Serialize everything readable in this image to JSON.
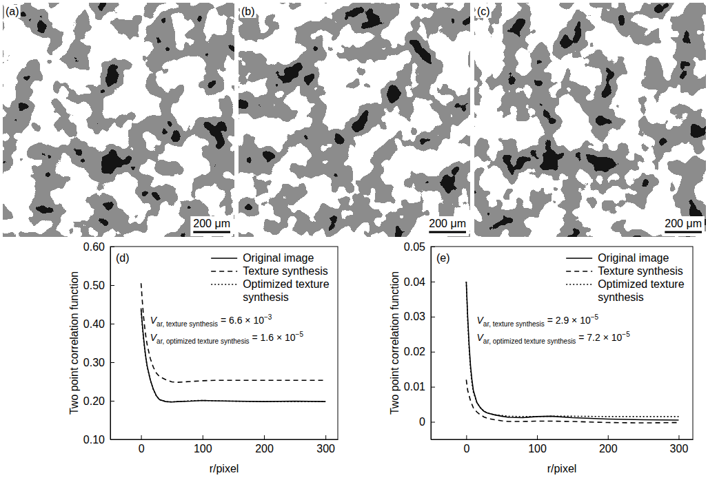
{
  "images": [
    {
      "label": "(a)",
      "scale_bar": "200 μm"
    },
    {
      "label": "(b)",
      "scale_bar": "200 μm"
    },
    {
      "label": "(c)",
      "scale_bar": "200 μm"
    }
  ],
  "chart_data": [
    {
      "type": "line",
      "title": "(d)",
      "x_label": "r/pixel",
      "y_label": "Two point correlation function",
      "xlim": [
        -50,
        320
      ],
      "xticks": [
        0,
        100,
        200,
        300
      ],
      "ylim": [
        0.1,
        0.6
      ],
      "yticks": [
        {
          "value": 0.1,
          "label": "0.10"
        },
        {
          "value": 0.2,
          "label": "0.20"
        },
        {
          "value": 0.3,
          "label": "0.30"
        },
        {
          "value": 0.4,
          "label": "0.40"
        },
        {
          "value": 0.5,
          "label": "0.50"
        },
        {
          "value": 0.6,
          "label": "0.60"
        }
      ],
      "grid": false,
      "legend": "upper right",
      "x": [
        0,
        2,
        4,
        6,
        8,
        10,
        15,
        20,
        25,
        30,
        40,
        50,
        60,
        80,
        100,
        120,
        150,
        200,
        250,
        300
      ],
      "series": [
        {
          "name": "Original image",
          "color": "#000000",
          "line_style": "solid",
          "values": [
            0.44,
            0.4,
            0.365,
            0.335,
            0.31,
            0.29,
            0.255,
            0.23,
            0.213,
            0.203,
            0.198,
            0.197,
            0.198,
            0.199,
            0.201,
            0.2,
            0.199,
            0.198,
            0.199,
            0.198
          ]
        },
        {
          "name": "Texture synthesis",
          "color": "#000000",
          "line_style": "dashed",
          "values": [
            0.505,
            0.46,
            0.42,
            0.39,
            0.365,
            0.345,
            0.31,
            0.287,
            0.272,
            0.263,
            0.255,
            0.249,
            0.248,
            0.25,
            0.252,
            0.253,
            0.253,
            0.253,
            0.253,
            0.253
          ]
        },
        {
          "name": "Optimized texture synthesis",
          "color": "#000000",
          "line_style": "dotted",
          "values": [
            0.435,
            0.395,
            0.36,
            0.332,
            0.308,
            0.288,
            0.254,
            0.229,
            0.212,
            0.203,
            0.198,
            0.197,
            0.198,
            0.2,
            0.201,
            0.2,
            0.199,
            0.198,
            0.198,
            0.198
          ]
        }
      ],
      "annotations": [
        {
          "symbol": "V",
          "subscript": "ar, texture synthesis",
          "text": " = 6.6 × 10",
          "superscript": "−3"
        },
        {
          "symbol": "V",
          "subscript": "ar, optimized texture synthesis",
          "text": " = 1.6 × 10",
          "superscript": "−5"
        }
      ]
    },
    {
      "type": "line",
      "title": "(e)",
      "x_label": "r/pixel",
      "y_label": "Two point correlation function",
      "xlim": [
        -50,
        320
      ],
      "xticks": [
        0,
        100,
        200,
        300
      ],
      "ylim": [
        -0.005,
        0.05
      ],
      "yticks": [
        0,
        0.01,
        0.02,
        0.03,
        0.04,
        0.05
      ],
      "grid": false,
      "legend": "upper right",
      "x": [
        0,
        2,
        4,
        6,
        8,
        10,
        15,
        20,
        25,
        30,
        40,
        50,
        60,
        80,
        100,
        120,
        150,
        200,
        250,
        300
      ],
      "series": [
        {
          "name": "Original image",
          "color": "#000000",
          "line_style": "solid",
          "values": [
            0.04,
            0.03,
            0.022,
            0.016,
            0.012,
            0.009,
            0.0055,
            0.004,
            0.003,
            0.0025,
            0.002,
            0.0016,
            0.0013,
            0.0012,
            0.0015,
            0.0016,
            0.0012,
            0.0008,
            0.0006,
            0.0005
          ]
        },
        {
          "name": "Texture synthesis",
          "color": "#000000",
          "line_style": "dashed",
          "values": [
            0.012,
            0.009,
            0.0075,
            0.006,
            0.005,
            0.004,
            0.0028,
            0.002,
            0.0014,
            0.001,
            0.0006,
            0.0003,
            0.0001,
            0.0001,
            0.0002,
            0.0002,
            0.0001,
            -0.0002,
            -0.0003,
            -0.0002
          ]
        },
        {
          "name": "Optimized texture synthesis",
          "color": "#000000",
          "line_style": "dotted",
          "values": [
            0.04,
            0.029,
            0.021,
            0.015,
            0.011,
            0.0085,
            0.0055,
            0.004,
            0.003,
            0.0025,
            0.002,
            0.0018,
            0.0016,
            0.0015,
            0.0015,
            0.0016,
            0.0016,
            0.0015,
            0.0015,
            0.0015
          ]
        }
      ],
      "annotations": [
        {
          "symbol": "V",
          "subscript": "ar, texture synthesis",
          "text": " = 2.9 × 10",
          "superscript": "−5"
        },
        {
          "symbol": "V",
          "subscript": "ar, optimized texture synthesis",
          "text": " = 7.2 × 10",
          "superscript": "−5"
        }
      ]
    }
  ]
}
